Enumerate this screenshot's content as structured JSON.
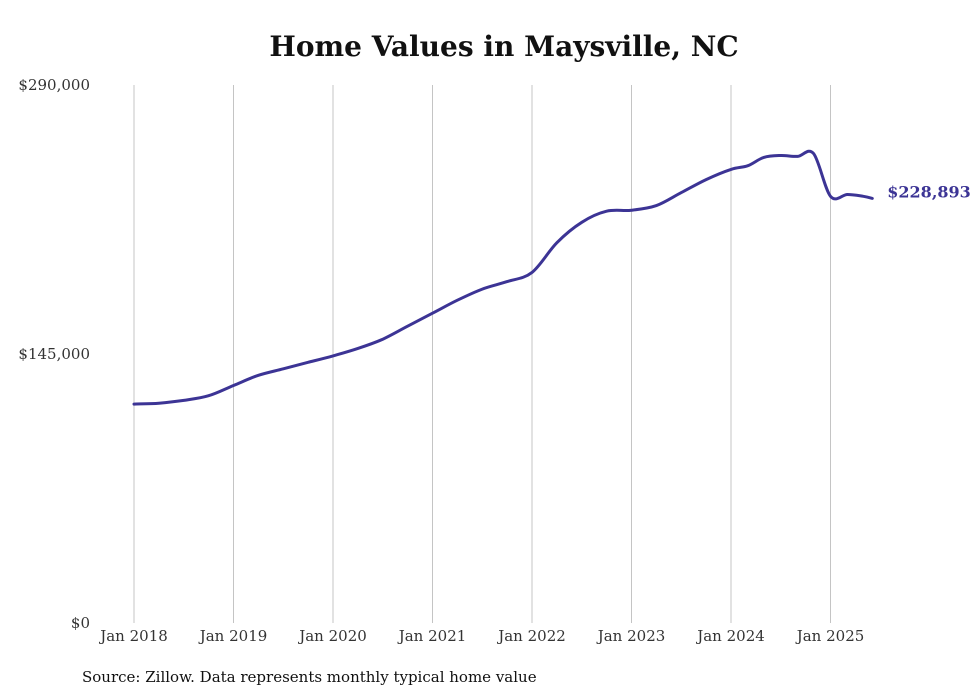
{
  "chart_data": {
    "type": "line",
    "title": "Home Values in Maysville, NC",
    "xlabel": "",
    "ylabel": "",
    "ylim": [
      0,
      290000
    ],
    "y_ticks": [
      {
        "value": 0,
        "label": "$0"
      },
      {
        "value": 145000,
        "label": "$145,000"
      },
      {
        "value": 290000,
        "label": "$290,000"
      }
    ],
    "x_ticks": [
      {
        "value": 2018,
        "label": "Jan 2018"
      },
      {
        "value": 2019,
        "label": "Jan 2019"
      },
      {
        "value": 2020,
        "label": "Jan 2020"
      },
      {
        "value": 2021,
        "label": "Jan 2021"
      },
      {
        "value": 2022,
        "label": "Jan 2022"
      },
      {
        "value": 2023,
        "label": "Jan 2023"
      },
      {
        "value": 2024,
        "label": "Jan 2024"
      },
      {
        "value": 2025,
        "label": "Jan 2025"
      }
    ],
    "grid": "vertical",
    "line_color": "#3c3495",
    "end_label": "$228,893",
    "series": [
      {
        "x": [
          2018.0,
          2018.25,
          2018.5,
          2018.75,
          2019.0,
          2019.25,
          2019.5,
          2019.75,
          2020.0,
          2020.25,
          2020.5,
          2020.75,
          2021.0,
          2021.25,
          2021.5,
          2021.75,
          2022.0,
          2022.25,
          2022.5,
          2022.75,
          2023.0,
          2023.25,
          2023.5,
          2023.75,
          2024.0,
          2024.17,
          2024.33,
          2024.5,
          2024.67,
          2024.83,
          2025.0,
          2025.17,
          2025.33,
          2025.42
        ],
        "values": [
          118000,
          118500,
          120000,
          122500,
          128000,
          133500,
          137000,
          140500,
          144000,
          148000,
          153000,
          160000,
          167000,
          174000,
          180000,
          184000,
          189000,
          205000,
          216000,
          222000,
          222500,
          225000,
          232000,
          239000,
          244500,
          246500,
          251000,
          252000,
          251500,
          253000,
          230000,
          231000,
          230000,
          228893
        ]
      }
    ]
  },
  "source": "Source: Zillow. Data represents monthly typical home value"
}
